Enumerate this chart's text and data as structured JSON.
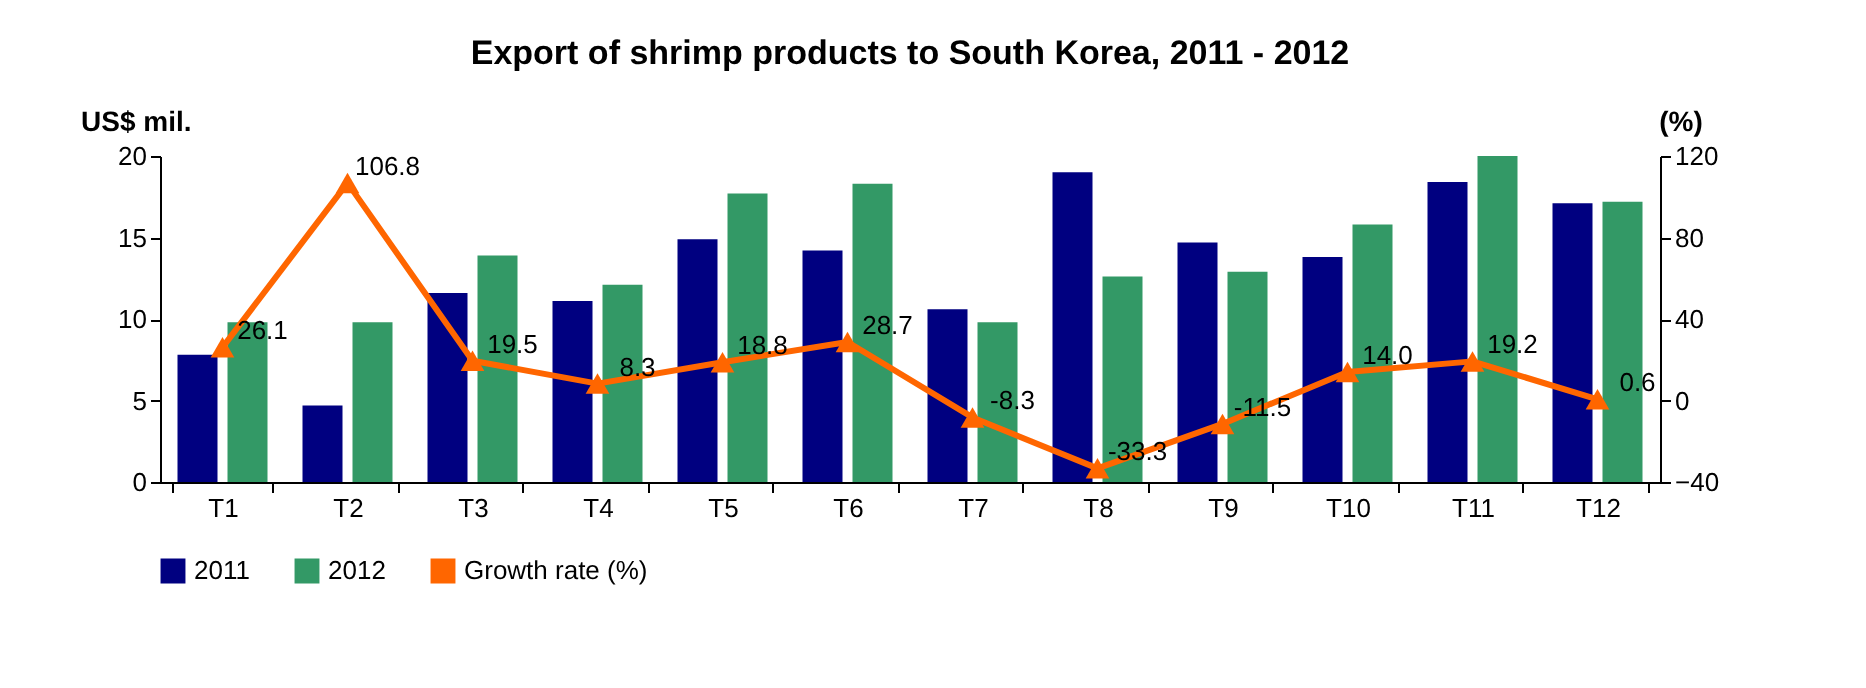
{
  "chart_data": {
    "type": "bar",
    "title": "Export of shrimp products to South Korea, 2011 - 2012",
    "ylabel": "US$ mil.",
    "y2label": "(%)",
    "categories": [
      "T1",
      "T2",
      "T3",
      "T4",
      "T5",
      "T6",
      "T7",
      "T8",
      "T9",
      "T10",
      "T11",
      "T12"
    ],
    "series": [
      {
        "name": "2011",
        "color": "#000080",
        "values": [
          7.8,
          4.7,
          11.6,
          11.1,
          14.9,
          14.2,
          10.6,
          19.0,
          14.7,
          13.8,
          18.4,
          17.1
        ]
      },
      {
        "name": "2012",
        "color": "#339966",
        "values": [
          9.8,
          9.8,
          13.9,
          12.1,
          17.7,
          18.3,
          9.8,
          12.6,
          12.9,
          15.8,
          20.0,
          17.2
        ]
      },
      {
        "name": "Growth rate (%)",
        "type": "line",
        "axis": "y2",
        "color": "#ff6600",
        "marker": "triangle",
        "values": [
          26.1,
          106.8,
          19.5,
          8.3,
          18.8,
          28.7,
          -8.3,
          -33.3,
          -11.5,
          14.0,
          19.2,
          0.6
        ],
        "value_labels": [
          "26.1",
          "106.8",
          "19.5",
          "8.3",
          "18.8",
          "28.7",
          "-8.3",
          "-33.3",
          "-11.5",
          "14.0",
          "19.2",
          "0.6"
        ]
      }
    ],
    "ylim": [
      0,
      20
    ],
    "yticks": [
      0,
      5,
      10,
      15,
      20
    ],
    "y2lim": [
      -40,
      120
    ],
    "y2ticks": [
      -40,
      0,
      40,
      80,
      120
    ],
    "grid": false,
    "legend": "bottom"
  }
}
